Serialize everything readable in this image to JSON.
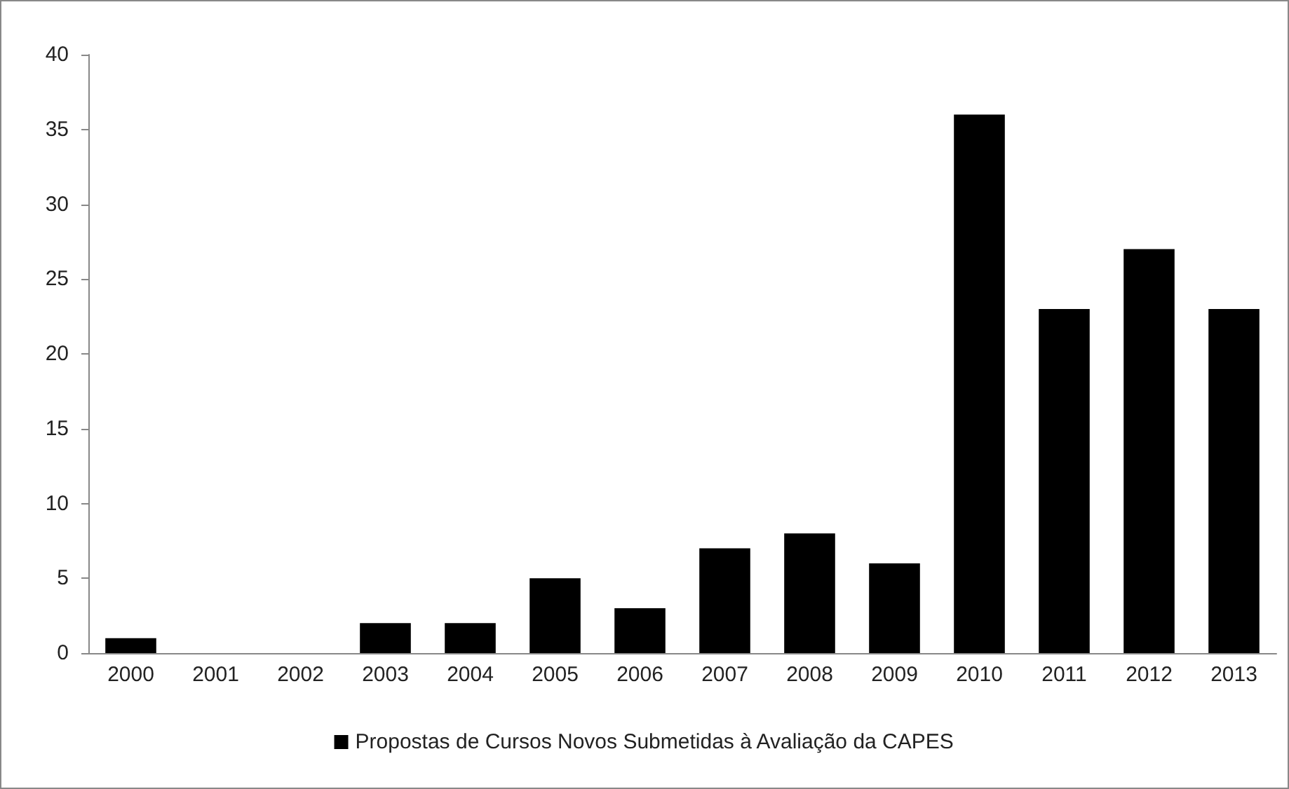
{
  "chart_data": {
    "type": "bar",
    "categories": [
      "2000",
      "2001",
      "2002",
      "2003",
      "2004",
      "2005",
      "2006",
      "2007",
      "2008",
      "2009",
      "2010",
      "2011",
      "2012",
      "2013"
    ],
    "series": [
      {
        "name": "Propostas de Cursos Novos Submetidas à Avaliação da CAPES",
        "color": "#000000",
        "values": [
          1,
          0,
          0,
          2,
          2,
          5,
          3,
          7,
          8,
          6,
          36,
          23,
          27,
          23
        ]
      }
    ],
    "ylim": [
      0,
      40
    ],
    "yticks": [
      0,
      5,
      10,
      15,
      20,
      25,
      30,
      35,
      40
    ],
    "grid": false,
    "legend": "bottom"
  }
}
